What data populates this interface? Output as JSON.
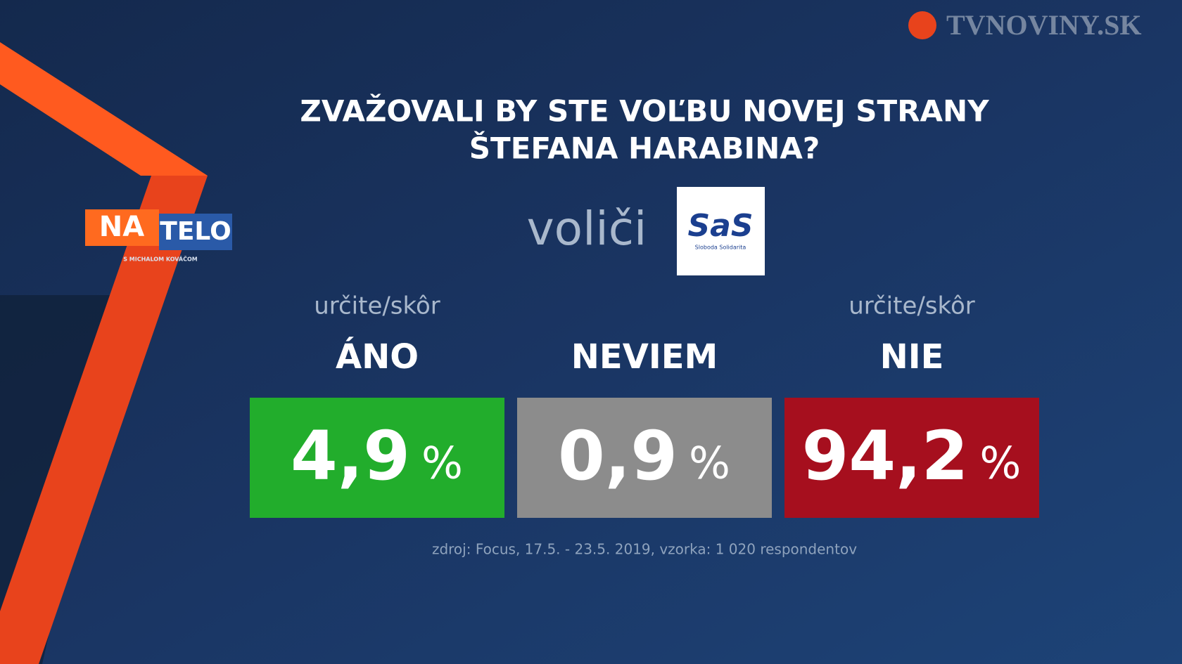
{
  "chart_data": {
    "type": "tiles",
    "title": [
      "ZVAŽOVALI BY STE VOĽBU NOVEJ STRANY",
      "ŠTEFANA HARABINA?"
    ],
    "subtitle": "voliči",
    "party_logo": {
      "name": "SaS",
      "tagline": "Sloboda Solidarita"
    },
    "qualifiers": [
      "určite/skôr",
      null,
      "určite/skôr"
    ],
    "categories": [
      "ÁNO",
      "NEVIEM",
      "NIE"
    ],
    "values": [
      4.9,
      0.9,
      94.2
    ],
    "value_labels": [
      "4,9",
      "0,9",
      "94,2"
    ],
    "unit": "%",
    "colors": [
      "#22ad2c",
      "#8c8c8c",
      "#a60f1e"
    ],
    "source": "zdroj: Focus, 17.5. - 23.5. 2019, vzorka: 1 020 respondentov"
  },
  "branding": {
    "channel": "TVNOVINY.SK",
    "show": [
      "NA",
      "TELO"
    ],
    "show_host": "S MICHALOM KOVÁČOM"
  }
}
